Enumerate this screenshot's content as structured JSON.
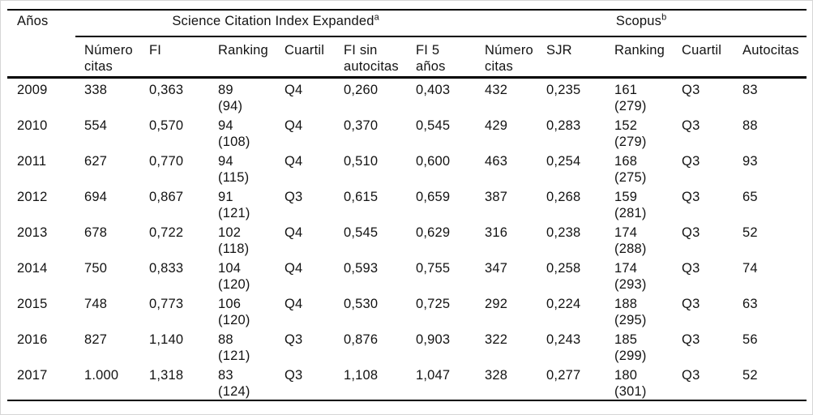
{
  "colors": {
    "rule": "#000000",
    "text": "#131313",
    "canvas_border": "#d6d6d6",
    "background": "#ffffff"
  },
  "table": {
    "corner_header": "Años",
    "spanners": [
      {
        "label": "Science Citation Index Expanded",
        "superscript": "a",
        "colspan": 6
      },
      {
        "label": "Scopus",
        "superscript": "b",
        "colspan": 5
      }
    ],
    "column_headers": [
      [
        "Número",
        "citas"
      ],
      [
        "FI"
      ],
      [
        "Ranking"
      ],
      [
        "Cuartil"
      ],
      [
        "FI sin",
        "autocitas"
      ],
      [
        "FI 5",
        "años"
      ],
      [
        "Número",
        "citas"
      ],
      [
        "SJR"
      ],
      [
        "Ranking"
      ],
      [
        "Cuartil"
      ],
      [
        "Autocitas"
      ]
    ],
    "rows": [
      {
        "year": "2009",
        "cells": [
          [
            "338"
          ],
          [
            "0,363"
          ],
          [
            "89",
            "(94)"
          ],
          [
            "Q4"
          ],
          [
            "0,260"
          ],
          [
            "0,403"
          ],
          [
            "432"
          ],
          [
            "0,235"
          ],
          [
            "161",
            "(279)"
          ],
          [
            "Q3"
          ],
          [
            "83"
          ]
        ]
      },
      {
        "year": "2010",
        "cells": [
          [
            "554"
          ],
          [
            "0,570"
          ],
          [
            "94",
            "(108)"
          ],
          [
            "Q4"
          ],
          [
            "0,370"
          ],
          [
            "0,545"
          ],
          [
            "429"
          ],
          [
            "0,283"
          ],
          [
            "152",
            "(279)"
          ],
          [
            "Q3"
          ],
          [
            "88"
          ]
        ]
      },
      {
        "year": "2011",
        "cells": [
          [
            "627"
          ],
          [
            "0,770"
          ],
          [
            "94",
            "(115)"
          ],
          [
            "Q4"
          ],
          [
            "0,510"
          ],
          [
            "0,600"
          ],
          [
            "463"
          ],
          [
            "0,254"
          ],
          [
            "168",
            "(275)"
          ],
          [
            "Q3"
          ],
          [
            "93"
          ]
        ]
      },
      {
        "year": "2012",
        "cells": [
          [
            "694"
          ],
          [
            "0,867"
          ],
          [
            "91",
            "(121)"
          ],
          [
            "Q3"
          ],
          [
            "0,615"
          ],
          [
            "0,659"
          ],
          [
            "387"
          ],
          [
            "0,268"
          ],
          [
            "159",
            "(281)"
          ],
          [
            "Q3"
          ],
          [
            "65"
          ]
        ]
      },
      {
        "year": "2013",
        "cells": [
          [
            "678"
          ],
          [
            "0,722"
          ],
          [
            "102",
            "(118)"
          ],
          [
            "Q4"
          ],
          [
            "0,545"
          ],
          [
            "0,629"
          ],
          [
            "316"
          ],
          [
            "0,238"
          ],
          [
            "174",
            "(288)"
          ],
          [
            "Q3"
          ],
          [
            "52"
          ]
        ]
      },
      {
        "year": "2014",
        "cells": [
          [
            "750"
          ],
          [
            "0,833"
          ],
          [
            "104",
            "(120)"
          ],
          [
            "Q4"
          ],
          [
            "0,593"
          ],
          [
            "0,755"
          ],
          [
            "347"
          ],
          [
            "0,258"
          ],
          [
            "174",
            "(293)"
          ],
          [
            "Q3"
          ],
          [
            "74"
          ]
        ]
      },
      {
        "year": "2015",
        "cells": [
          [
            "748"
          ],
          [
            "0,773"
          ],
          [
            "106",
            "(120)"
          ],
          [
            "Q4"
          ],
          [
            "0,530"
          ],
          [
            "0,725"
          ],
          [
            "292"
          ],
          [
            "0,224"
          ],
          [
            "188",
            "(295)"
          ],
          [
            "Q3"
          ],
          [
            "63"
          ]
        ]
      },
      {
        "year": "2016",
        "cells": [
          [
            "827"
          ],
          [
            "1,140"
          ],
          [
            "88",
            "(121)"
          ],
          [
            "Q3"
          ],
          [
            "0,876"
          ],
          [
            "0,903"
          ],
          [
            "322"
          ],
          [
            "0,243"
          ],
          [
            "185",
            "(299)"
          ],
          [
            "Q3"
          ],
          [
            "56"
          ]
        ]
      },
      {
        "year": "2017",
        "cells": [
          [
            "1.000"
          ],
          [
            "1,318"
          ],
          [
            "83",
            "(124)"
          ],
          [
            "Q3"
          ],
          [
            "1,108"
          ],
          [
            "1,047"
          ],
          [
            "328"
          ],
          [
            "0,277"
          ],
          [
            "180",
            "(301)"
          ],
          [
            "Q3"
          ],
          [
            "52"
          ]
        ]
      }
    ]
  }
}
